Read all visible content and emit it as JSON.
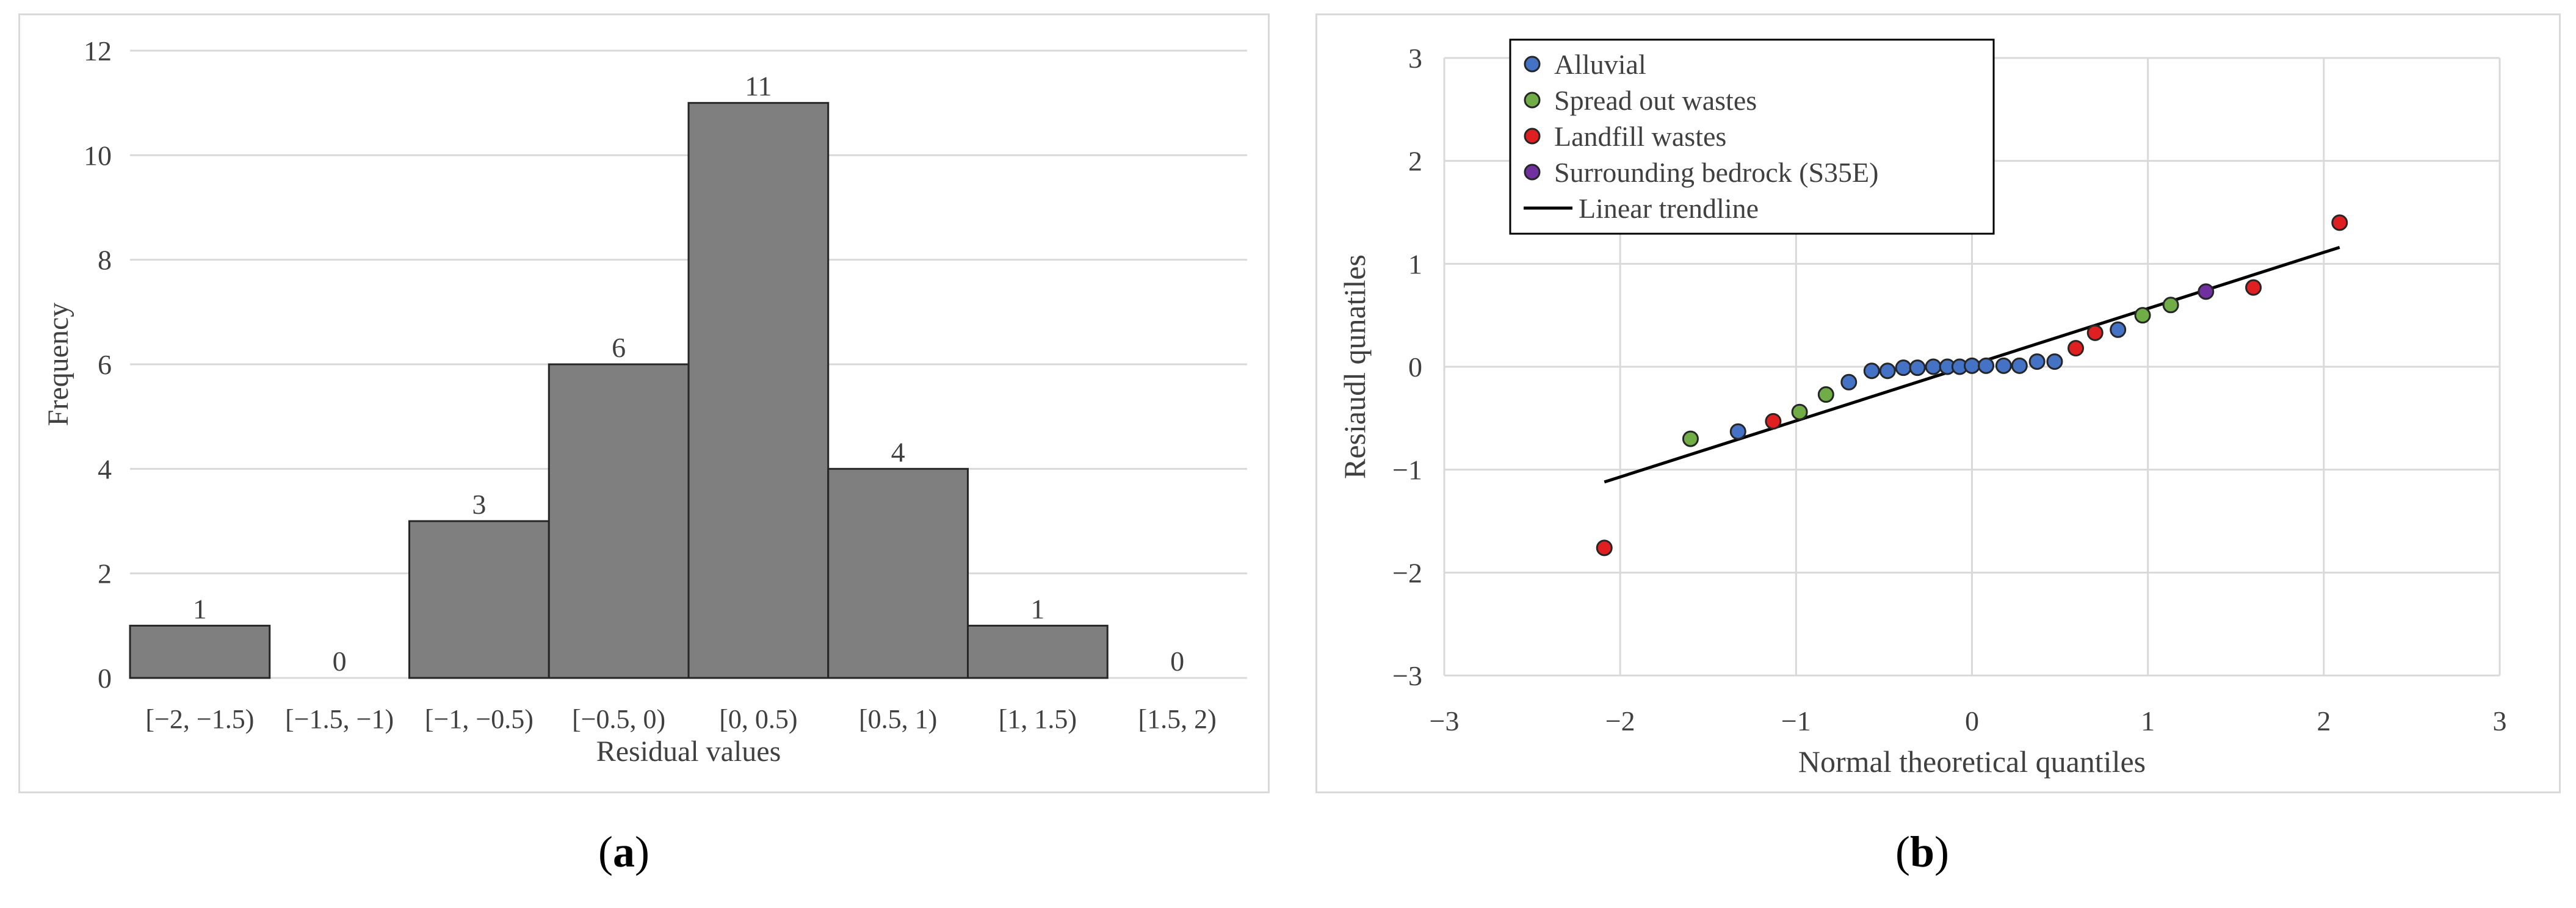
{
  "captions": {
    "a_open": "(",
    "a_letter": "a",
    "a_close": ")",
    "b_open": "(",
    "b_letter": "b",
    "b_close": ")"
  },
  "chart_data": [
    {
      "type": "bar",
      "categories": [
        "[−2, −1.5)",
        "[−1.5, −1)",
        "[−1, −0.5)",
        "[−0.5, 0)",
        "[0, 0.5)",
        "[0.5, 1)",
        "[1, 1.5)",
        "[1.5, 2)"
      ],
      "values": [
        1,
        0,
        3,
        6,
        11,
        4,
        1,
        0
      ],
      "xlabel": "Residual values",
      "ylabel": "Frequency",
      "ylim": [
        0,
        12
      ],
      "yticks": [
        0,
        2,
        4,
        6,
        8,
        10,
        12
      ],
      "grid": "horizontal",
      "bar_color": "#7f7f7f",
      "data_labels": true
    },
    {
      "type": "scatter",
      "xlabel": "Normal theoretical quantiles",
      "ylabel": "Resiaudl qunatiles",
      "xlim": [
        -3,
        3
      ],
      "ylim": [
        -3,
        3
      ],
      "xticks": [
        "−3",
        "−2",
        "−1",
        "0",
        "1",
        "2",
        "3"
      ],
      "yticks": [
        "3",
        "2",
        "1",
        "0",
        "−1",
        "−2",
        "−3"
      ],
      "grid": "both",
      "legend_position": "top-left",
      "series": [
        {
          "name": "Alluvial",
          "color": "#4472c4",
          "points": [
            [
              -1.33,
              -0.63
            ],
            [
              -0.7,
              -0.15
            ],
            [
              -0.57,
              -0.04
            ],
            [
              -0.48,
              -0.04
            ],
            [
              -0.39,
              -0.01
            ],
            [
              -0.31,
              -0.01
            ],
            [
              -0.22,
              0.0
            ],
            [
              -0.14,
              0.0
            ],
            [
              -0.07,
              0.0
            ],
            [
              0.0,
              0.01
            ],
            [
              0.08,
              0.01
            ],
            [
              0.18,
              0.01
            ],
            [
              0.27,
              0.01
            ],
            [
              0.37,
              0.05
            ],
            [
              0.47,
              0.05
            ],
            [
              0.83,
              0.36
            ]
          ]
        },
        {
          "name": "Spread out wastes",
          "color": "#70ad47",
          "points": [
            [
              -1.6,
              -0.7
            ],
            [
              -0.98,
              -0.44
            ],
            [
              -0.83,
              -0.27
            ],
            [
              0.97,
              0.5
            ],
            [
              1.13,
              0.6
            ]
          ]
        },
        {
          "name": "Landfill wastes",
          "color": "#e02020",
          "points": [
            [
              -2.09,
              -1.76
            ],
            [
              -1.13,
              -0.53
            ],
            [
              0.59,
              0.18
            ],
            [
              0.7,
              0.33
            ],
            [
              1.6,
              0.77
            ],
            [
              2.09,
              1.4
            ]
          ]
        },
        {
          "name": "Surrounding bedrock (S35E)",
          "color": "#7030a0",
          "points": [
            [
              1.33,
              0.73
            ]
          ]
        }
      ],
      "trendline": {
        "name": "Linear trendline",
        "x": [
          -2.09,
          2.09
        ],
        "y": [
          -1.12,
          1.16
        ]
      }
    }
  ]
}
